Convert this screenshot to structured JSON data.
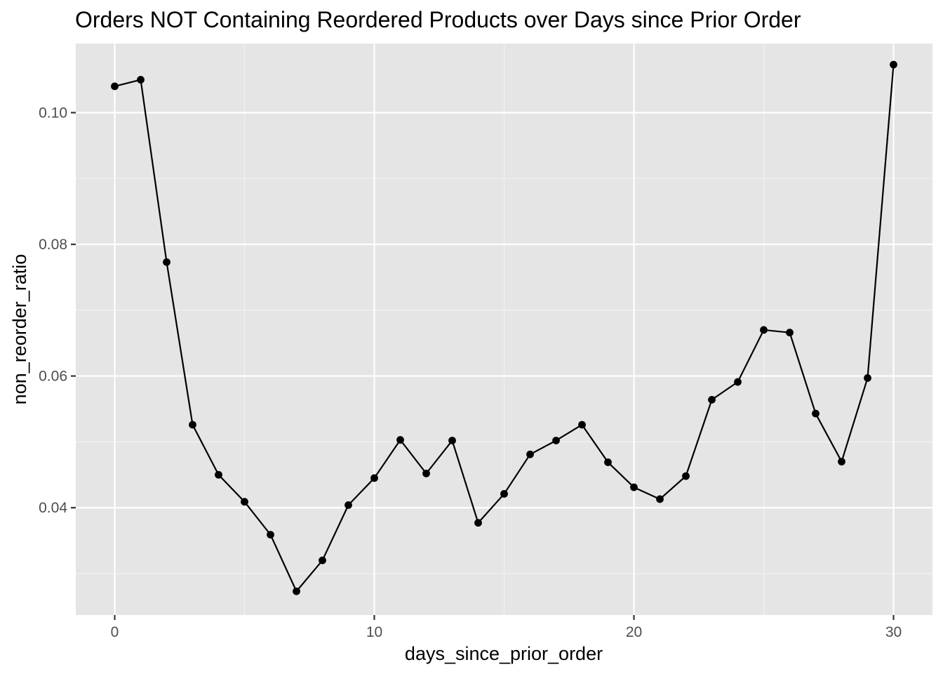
{
  "chart_data": {
    "type": "line",
    "title": "Orders NOT Containing Reordered Products over Days since Prior Order",
    "xlabel": "days_since_prior_order",
    "ylabel": "non_reorder_ratio",
    "xlim": [
      -1.5,
      31.5
    ],
    "ylim": [
      0.0237,
      0.1105
    ],
    "x_ticks": [
      0,
      10,
      20,
      30
    ],
    "x_tick_labels": [
      "0",
      "10",
      "20",
      "30"
    ],
    "x_minor_ticks": [
      5,
      15,
      25
    ],
    "y_ticks": [
      0.04,
      0.06,
      0.08,
      0.1
    ],
    "y_tick_labels": [
      "0.04",
      "0.06",
      "0.08",
      "0.10"
    ],
    "y_minor_ticks": [
      0.03,
      0.05,
      0.07,
      0.09
    ],
    "grid": true,
    "legend": "none",
    "x": [
      0,
      1,
      2,
      3,
      4,
      5,
      6,
      7,
      8,
      9,
      10,
      11,
      12,
      13,
      14,
      15,
      16,
      17,
      18,
      19,
      20,
      21,
      22,
      23,
      24,
      25,
      26,
      27,
      28,
      29,
      30
    ],
    "y": [
      0.104,
      0.105,
      0.0773,
      0.0526,
      0.045,
      0.0409,
      0.0359,
      0.0273,
      0.032,
      0.0404,
      0.0445,
      0.0503,
      0.0452,
      0.0502,
      0.0377,
      0.0421,
      0.0481,
      0.0502,
      0.0526,
      0.0469,
      0.0431,
      0.0413,
      0.0448,
      0.0564,
      0.0591,
      0.067,
      0.0666,
      0.0543,
      0.047,
      0.0597,
      0.1073
    ],
    "colors": {
      "panel_background": "#e5e5e5",
      "grid_major": "#ffffff",
      "grid_minor": "#f2f2f2",
      "line": "#000000",
      "point": "#000000",
      "tick_label": "#4d4d4d",
      "tick_mark": "#333333"
    }
  }
}
